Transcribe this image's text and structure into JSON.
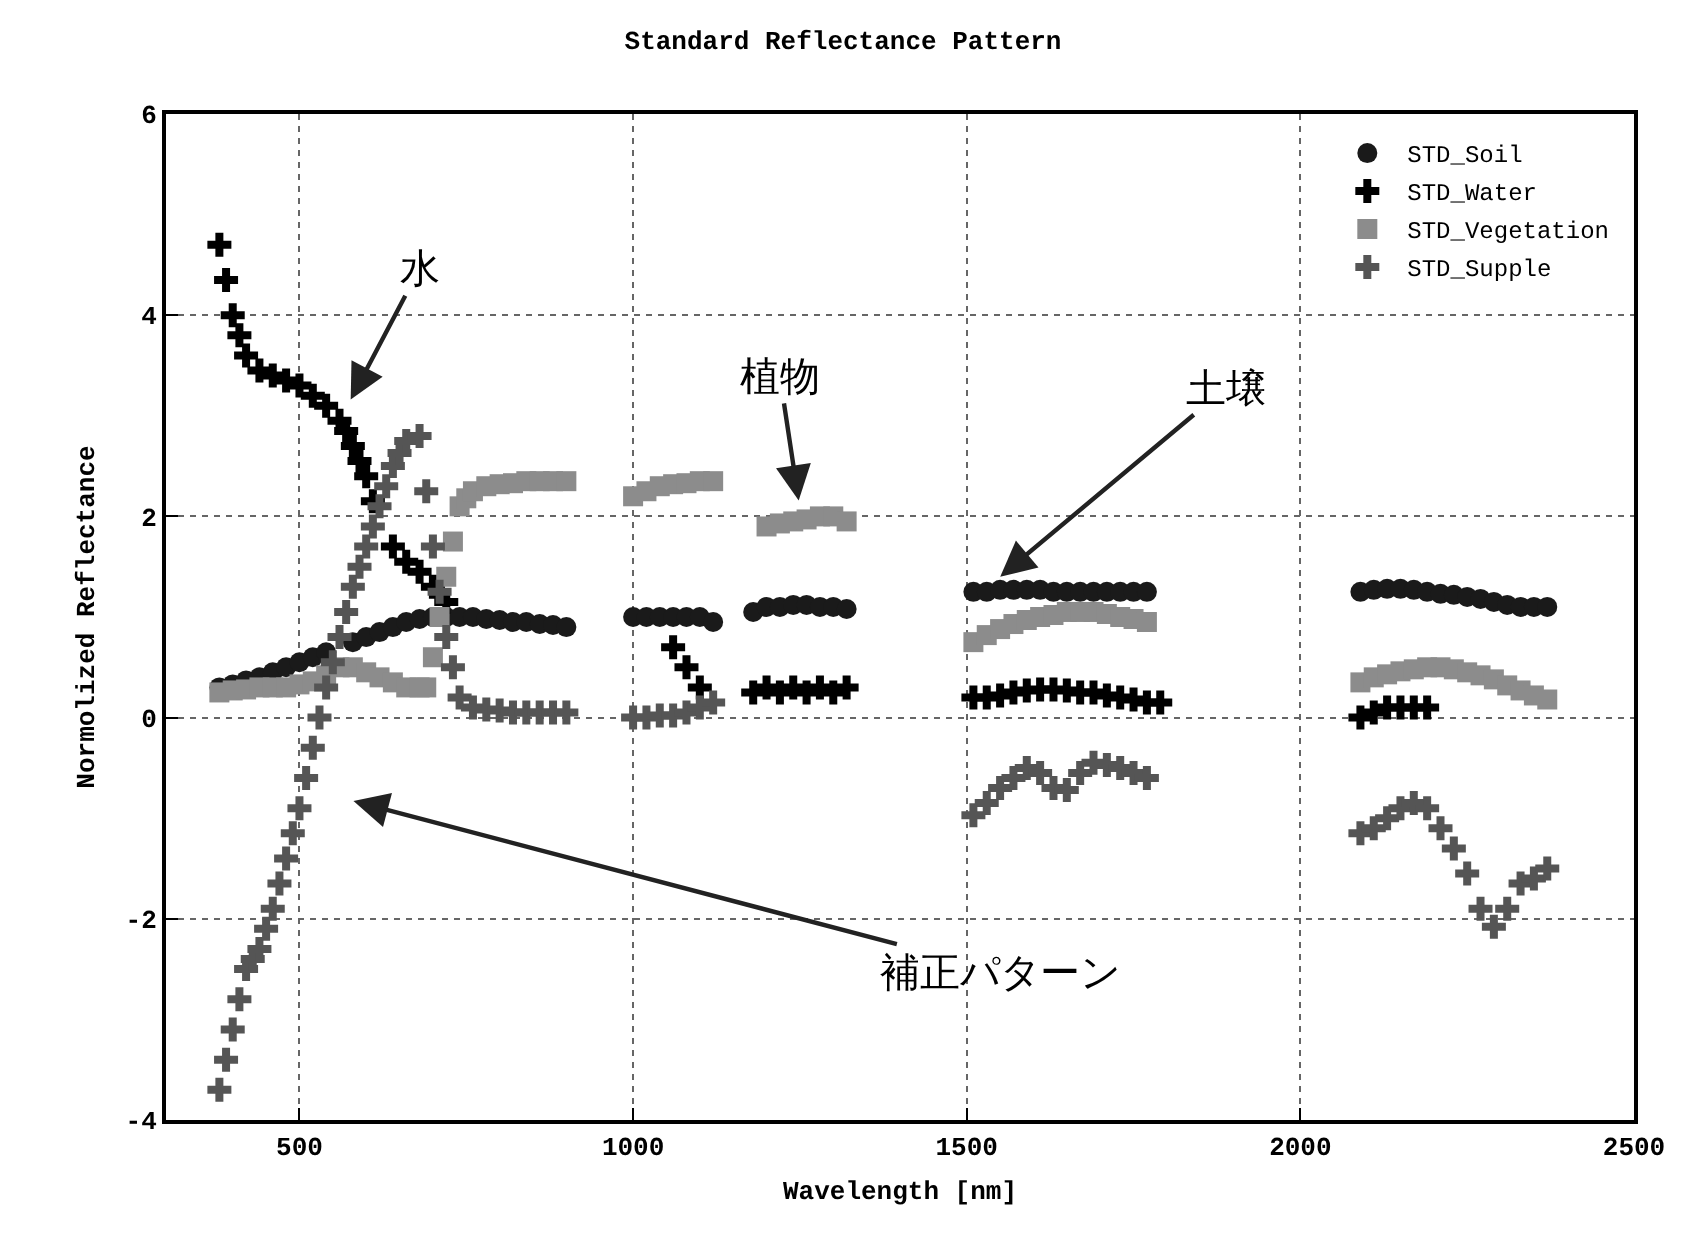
{
  "chart_data": {
    "type": "scatter",
    "title": "Standard Reflectance Pattern",
    "xlabel": "Wavelength [nm]",
    "ylabel": "Normolized Reflectance",
    "xlim": [
      300,
      2500
    ],
    "xticks": [
      500,
      1000,
      1500,
      2000,
      2500
    ],
    "ylim": [
      -4,
      6
    ],
    "yticks": [
      -4,
      -2,
      0,
      2,
      4,
      6
    ],
    "grid": true,
    "legend": "top right",
    "series": [
      {
        "name": "STD_Soil",
        "color": "#1a1a1a",
        "marker": "circle",
        "x": [
          380,
          400,
          420,
          440,
          460,
          480,
          500,
          520,
          540,
          580,
          600,
          620,
          640,
          660,
          680,
          700,
          720,
          740,
          760,
          780,
          800,
          820,
          840,
          860,
          880,
          900,
          1000,
          1020,
          1040,
          1060,
          1080,
          1100,
          1120,
          1180,
          1200,
          1220,
          1240,
          1260,
          1280,
          1300,
          1320,
          1510,
          1530,
          1550,
          1570,
          1590,
          1610,
          1630,
          1650,
          1670,
          1690,
          1710,
          1730,
          1750,
          1770,
          2090,
          2110,
          2130,
          2150,
          2170,
          2190,
          2210,
          2230,
          2250,
          2270,
          2290,
          2310,
          2330,
          2350,
          2370
        ],
        "values": [
          0.3,
          0.33,
          0.37,
          0.4,
          0.45,
          0.5,
          0.55,
          0.6,
          0.65,
          0.75,
          0.8,
          0.85,
          0.9,
          0.95,
          0.98,
          1.0,
          1.0,
          1.0,
          1.0,
          0.98,
          0.97,
          0.95,
          0.95,
          0.93,
          0.92,
          0.9,
          1.0,
          1.0,
          1.0,
          1.0,
          1.0,
          1.0,
          0.95,
          1.05,
          1.1,
          1.1,
          1.12,
          1.12,
          1.1,
          1.1,
          1.08,
          1.25,
          1.25,
          1.27,
          1.27,
          1.27,
          1.27,
          1.25,
          1.25,
          1.25,
          1.25,
          1.25,
          1.25,
          1.25,
          1.25,
          1.25,
          1.27,
          1.28,
          1.28,
          1.27,
          1.25,
          1.23,
          1.22,
          1.2,
          1.18,
          1.15,
          1.12,
          1.1,
          1.1,
          1.1
        ]
      },
      {
        "name": "STD_Water",
        "color": "#000000",
        "marker": "cross",
        "x": [
          380,
          390,
          400,
          410,
          420,
          440,
          460,
          480,
          500,
          520,
          540,
          560,
          570,
          580,
          590,
          600,
          610,
          620,
          640,
          660,
          680,
          700,
          720,
          1060,
          1080,
          1100,
          1120,
          1180,
          1200,
          1220,
          1240,
          1260,
          1280,
          1300,
          1320,
          1510,
          1530,
          1550,
          1570,
          1590,
          1610,
          1630,
          1650,
          1670,
          1690,
          1710,
          1730,
          1750,
          1770,
          1790,
          2090,
          2110,
          2130,
          2150,
          2170,
          2190
        ],
        "values": [
          4.7,
          4.35,
          4.0,
          3.8,
          3.6,
          3.45,
          3.4,
          3.35,
          3.3,
          3.2,
          3.1,
          2.95,
          2.85,
          2.7,
          2.55,
          2.4,
          2.15,
          null,
          1.7,
          1.55,
          1.45,
          1.3,
          1.15,
          0.7,
          0.5,
          0.3,
          null,
          0.25,
          0.3,
          0.25,
          0.3,
          0.25,
          0.3,
          0.25,
          0.3,
          0.2,
          0.2,
          0.22,
          0.25,
          0.27,
          0.28,
          0.28,
          0.27,
          0.25,
          0.25,
          0.22,
          0.2,
          0.18,
          0.15,
          0.15,
          0.0,
          0.05,
          0.1,
          0.1,
          0.1,
          0.1
        ]
      },
      {
        "name": "STD_Vegetation",
        "color": "#8c8c8c",
        "marker": "square",
        "x": [
          380,
          400,
          420,
          440,
          460,
          480,
          500,
          520,
          540,
          560,
          580,
          600,
          620,
          640,
          660,
          680,
          690,
          700,
          710,
          720,
          730,
          740,
          750,
          760,
          780,
          800,
          820,
          840,
          860,
          880,
          900,
          1000,
          1020,
          1040,
          1060,
          1080,
          1100,
          1120,
          1200,
          1220,
          1240,
          1260,
          1280,
          1300,
          1320,
          1510,
          1530,
          1550,
          1570,
          1590,
          1610,
          1630,
          1650,
          1670,
          1690,
          1710,
          1730,
          1750,
          1770,
          2090,
          2110,
          2130,
          2150,
          2170,
          2190,
          2210,
          2230,
          2250,
          2270,
          2290,
          2310,
          2330,
          2350,
          2370
        ],
        "values": [
          0.25,
          0.27,
          0.28,
          0.3,
          0.3,
          0.3,
          0.33,
          0.36,
          0.42,
          0.5,
          0.5,
          0.45,
          0.4,
          0.35,
          0.3,
          0.3,
          0.3,
          0.6,
          1.0,
          1.4,
          1.75,
          2.1,
          2.18,
          2.25,
          2.3,
          2.32,
          2.33,
          2.35,
          2.35,
          2.35,
          2.35,
          2.2,
          2.25,
          2.3,
          2.32,
          2.33,
          2.35,
          2.35,
          1.9,
          1.93,
          1.95,
          1.97,
          2.0,
          2.0,
          1.95,
          0.75,
          0.82,
          0.88,
          0.93,
          0.97,
          1.0,
          1.02,
          1.05,
          1.05,
          1.05,
          1.03,
          1.0,
          0.98,
          0.95,
          0.35,
          0.4,
          0.43,
          0.46,
          0.48,
          0.5,
          0.5,
          0.48,
          0.45,
          0.42,
          0.38,
          0.32,
          0.27,
          0.22,
          0.18
        ]
      },
      {
        "name": "STD_Supple",
        "color": "#555555",
        "marker": "cross",
        "x": [
          380,
          390,
          400,
          410,
          420,
          430,
          440,
          450,
          460,
          470,
          480,
          490,
          500,
          510,
          520,
          530,
          540,
          550,
          560,
          570,
          580,
          590,
          600,
          610,
          620,
          630,
          640,
          650,
          660,
          680,
          690,
          700,
          710,
          720,
          730,
          740,
          760,
          780,
          800,
          820,
          840,
          860,
          880,
          900,
          1000,
          1020,
          1040,
          1060,
          1080,
          1100,
          1120,
          1510,
          1530,
          1550,
          1570,
          1590,
          1610,
          1630,
          1650,
          1670,
          1690,
          1710,
          1730,
          1750,
          1770,
          2090,
          2110,
          2130,
          2150,
          2170,
          2190,
          2210,
          2230,
          2250,
          2270,
          2290,
          2310,
          2330,
          2350,
          2370
        ],
        "values": [
          -3.7,
          -3.4,
          -3.1,
          -2.8,
          -2.5,
          -2.4,
          -2.3,
          -2.1,
          -1.9,
          -1.65,
          -1.4,
          -1.15,
          -0.9,
          -0.6,
          -0.3,
          0.0,
          0.3,
          0.55,
          0.8,
          1.05,
          1.3,
          1.5,
          1.7,
          1.9,
          2.1,
          2.3,
          2.5,
          2.63,
          2.75,
          2.8,
          2.25,
          1.7,
          1.25,
          0.8,
          0.5,
          0.2,
          0.1,
          0.08,
          0.07,
          0.05,
          0.05,
          0.05,
          0.05,
          0.05,
          0.0,
          0.0,
          0.02,
          0.02,
          0.05,
          0.1,
          0.15,
          -0.97,
          -0.85,
          -0.7,
          -0.6,
          -0.5,
          -0.55,
          -0.7,
          -0.72,
          -0.55,
          -0.45,
          -0.47,
          -0.5,
          -0.55,
          -0.6,
          -1.15,
          -1.1,
          -1.0,
          -0.9,
          -0.85,
          -0.9,
          -1.1,
          -1.3,
          -1.55,
          -1.9,
          -2.08,
          -1.9,
          -1.65,
          -1.6,
          -1.5
        ]
      }
    ],
    "annotations": [
      {
        "text": "水",
        "x": 560,
        "y": 2.95
      },
      {
        "text": "植物",
        "x": 1250,
        "y": 2.08
      },
      {
        "text": "土壌",
        "x": 1541,
        "y": 1.35
      },
      "補正パターン"
    ]
  }
}
